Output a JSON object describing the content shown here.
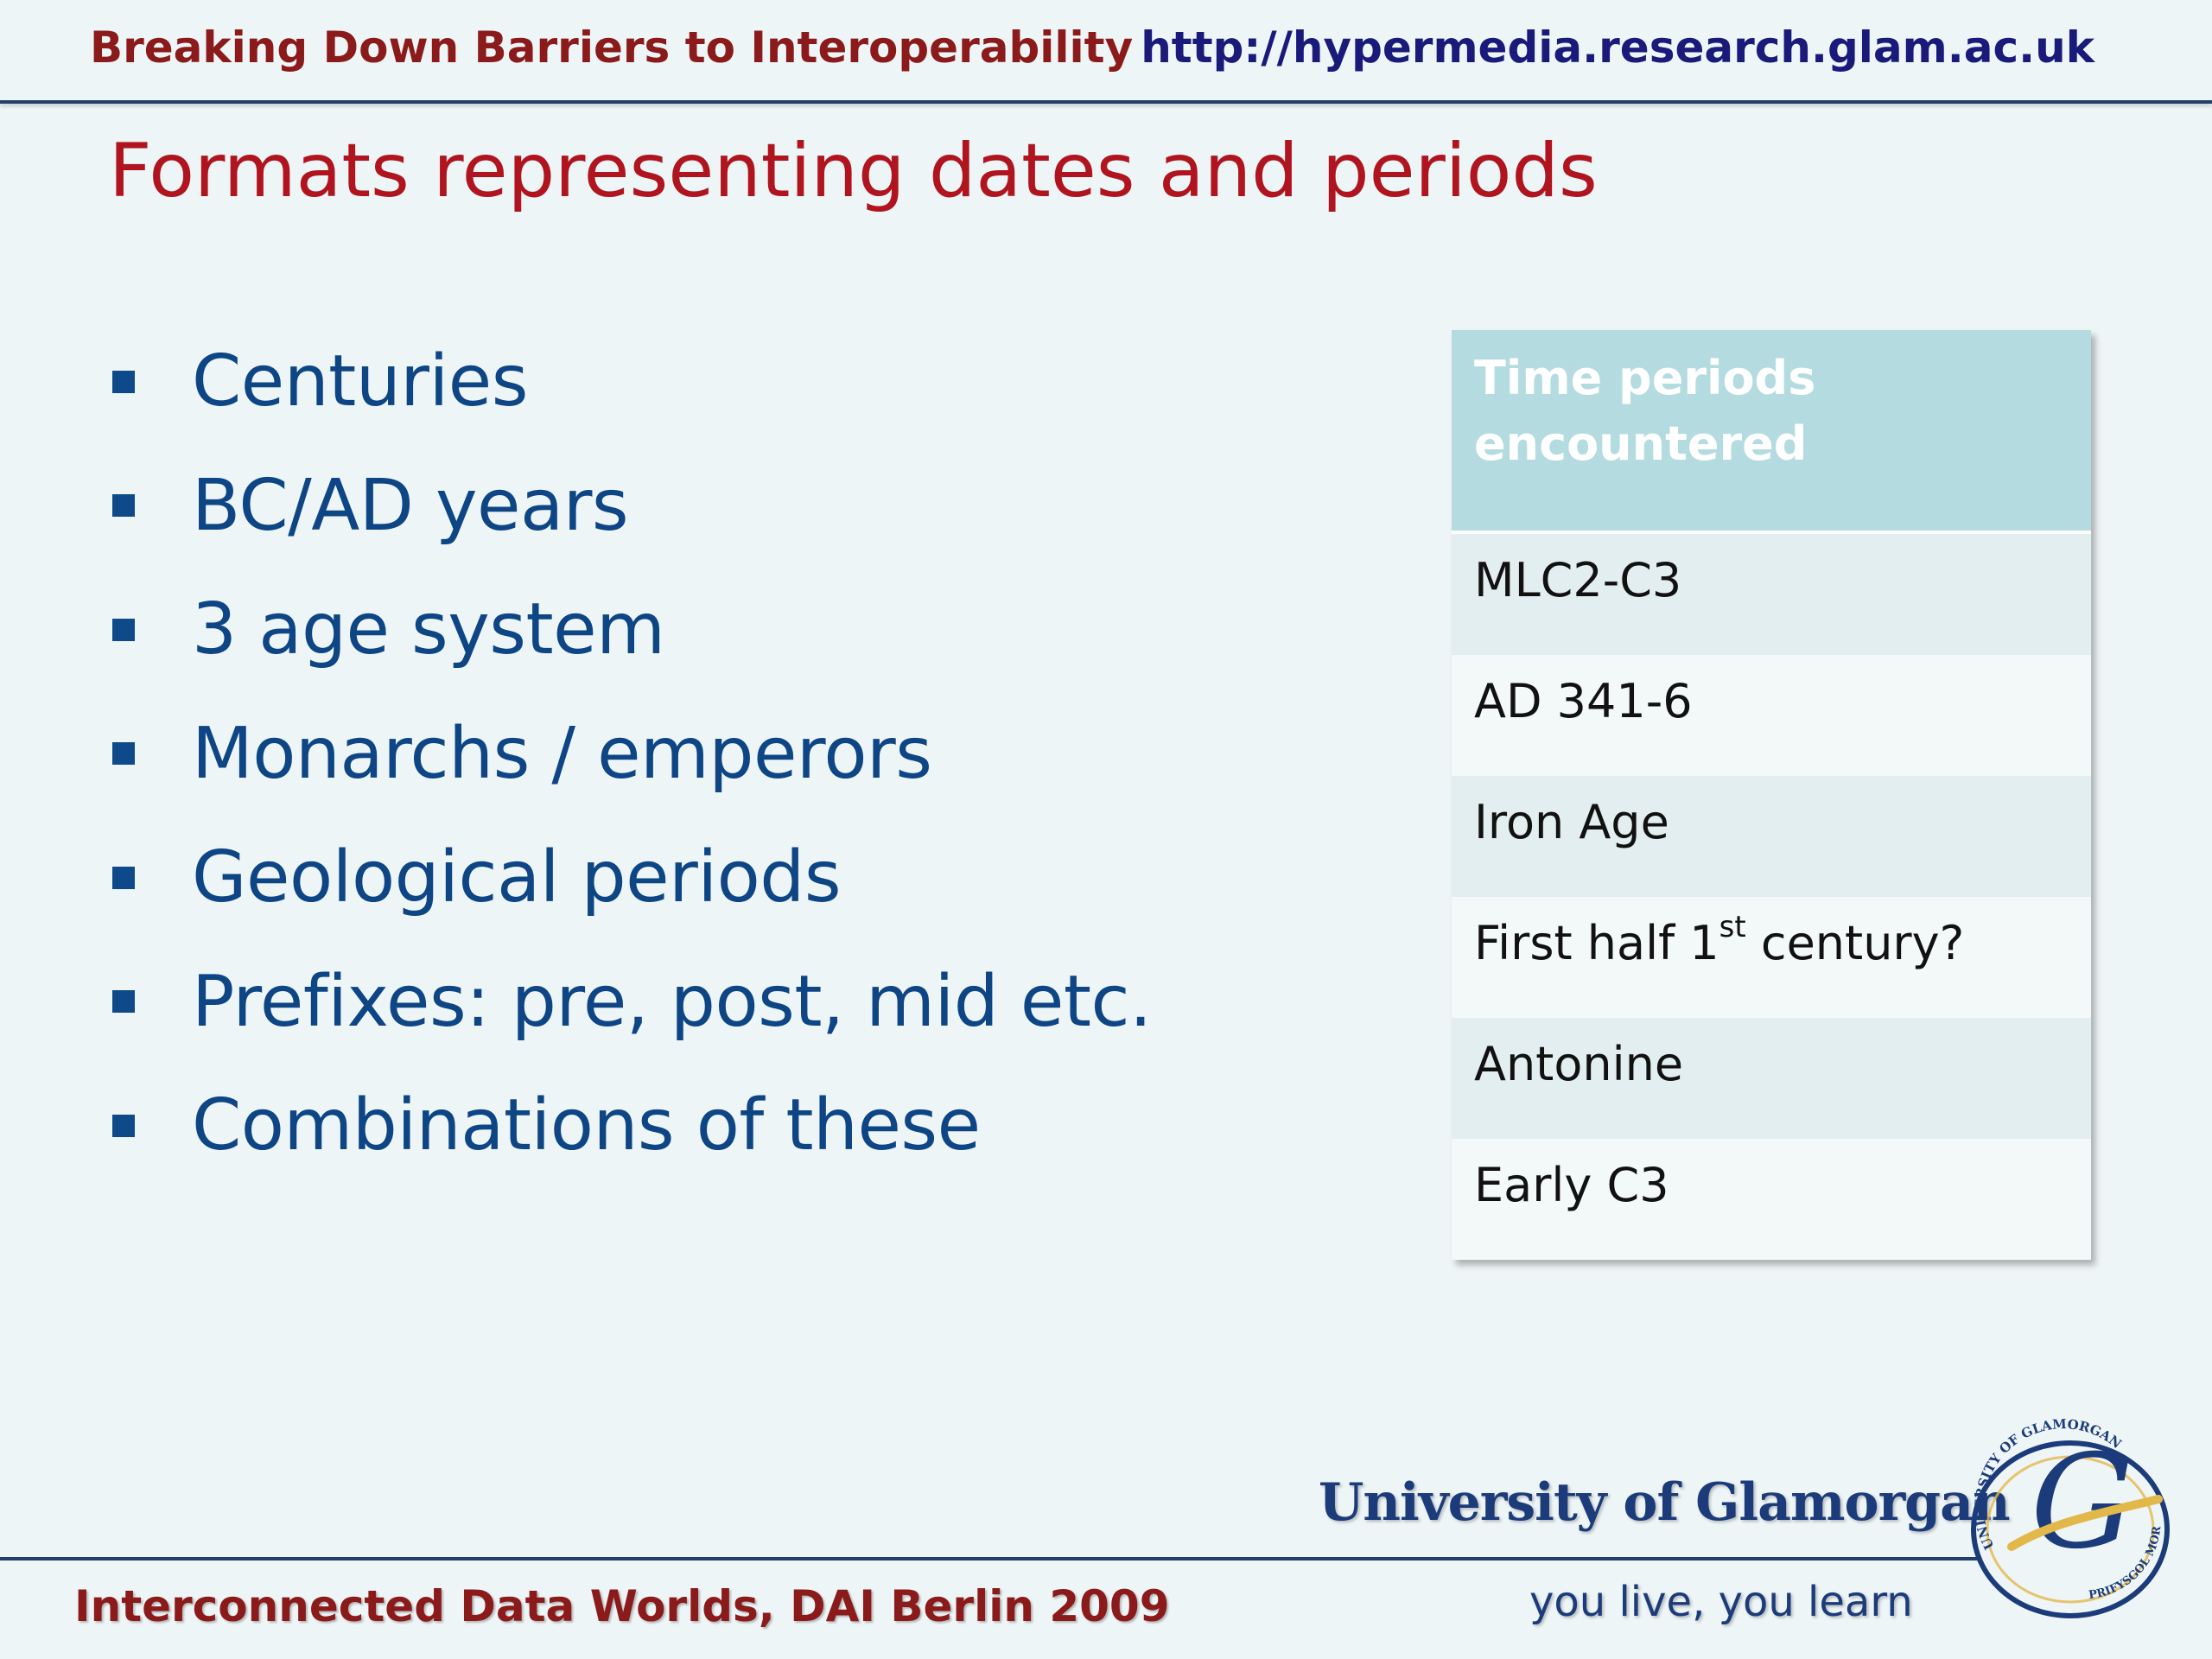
{
  "header": {
    "left": "Breaking Down Barriers to Interoperability",
    "right": "http://hypermedia.research.glam.ac.uk"
  },
  "slide_title": "Formats representing dates and periods",
  "bullets": [
    "Centuries",
    "BC/AD years",
    "3 age system",
    "Monarchs / emperors",
    "Geological periods",
    "Prefixes: pre, post, mid etc.",
    "Combinations of these"
  ],
  "table": {
    "header": "Time periods encountered",
    "rows": [
      "MLC2-C3",
      "AD 341-6",
      "Iron Age",
      {
        "text_before": "First half 1",
        "superscript": "st",
        "text_after": " century?"
      },
      "Antonine",
      "Early C3"
    ]
  },
  "footer": {
    "left": "Interconnected Data Worlds, DAI Berlin 2009",
    "university": "University of Glamorgan",
    "motto": "you live, you learn"
  },
  "logo": {
    "icon": "university-crest-icon",
    "seal_text": "UNIVERSITY OF GLAMORGAN PRIFYSGOL MORGANNWG"
  },
  "colors": {
    "background": "#eef5f7",
    "title_red": "#b0141e",
    "header_red": "#8b1a1a",
    "bullet_blue": "#0d4585",
    "rule_navy": "#21406a",
    "table_header": "#b4dce0"
  }
}
